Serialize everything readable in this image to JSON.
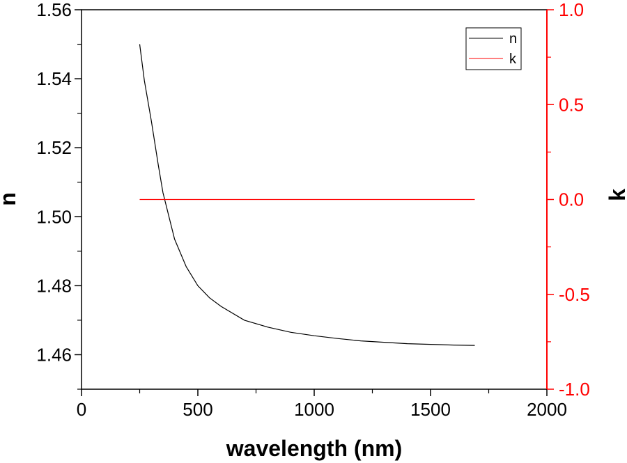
{
  "chart_data": {
    "type": "line",
    "xlabel": "wavelength (nm)",
    "ylabel": "n",
    "y2label": "k",
    "xlim": [
      0,
      2000
    ],
    "ylim": [
      1.45,
      1.56
    ],
    "y2lim": [
      -1.0,
      1.0
    ],
    "x_ticks": [
      "0",
      "500",
      "1000",
      "1500",
      "2000"
    ],
    "y_ticks": [
      "1.46",
      "1.48",
      "1.50",
      "1.52",
      "1.54",
      "1.56"
    ],
    "y2_ticks": [
      "-1.0",
      "-0.5",
      "0.0",
      "0.5",
      "1.0"
    ],
    "grid": false,
    "legend_position": "top-right",
    "colors": {
      "n": "#000000",
      "k": "#ff0000",
      "right_axis": "#ff0000"
    },
    "series": [
      {
        "name": "n",
        "axis": "left",
        "x": [
          250,
          270,
          300,
          330,
          350,
          400,
          450,
          500,
          550,
          600,
          700,
          800,
          900,
          1000,
          1100,
          1200,
          1300,
          1400,
          1500,
          1600,
          1690
        ],
        "values": [
          1.55,
          1.5395,
          1.5278,
          1.515,
          1.507,
          1.4935,
          1.4855,
          1.48,
          1.4765,
          1.474,
          1.47,
          1.468,
          1.4665,
          1.4655,
          1.4647,
          1.464,
          1.4636,
          1.4632,
          1.463,
          1.4628,
          1.4627
        ]
      },
      {
        "name": "k",
        "axis": "right",
        "x": [
          250,
          1690
        ],
        "values": [
          0.0,
          0.0
        ]
      }
    ]
  }
}
